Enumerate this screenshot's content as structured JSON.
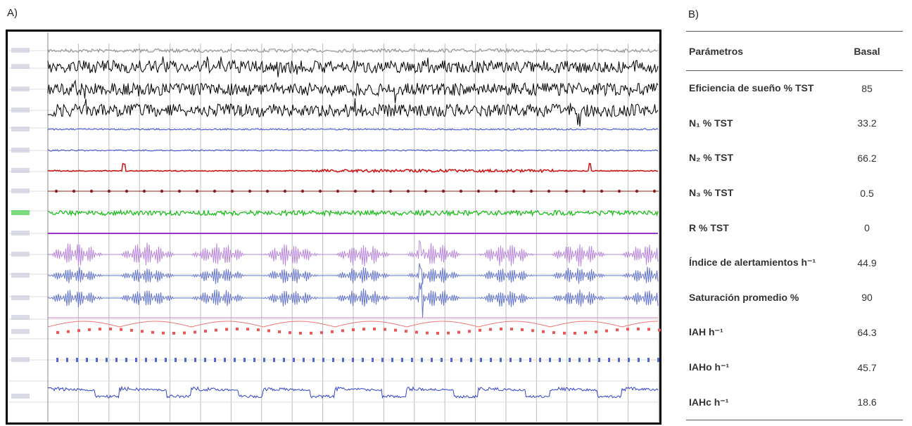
{
  "panel_a": {
    "label": "A)"
  },
  "panel_b": {
    "label": "B)",
    "table": {
      "header": [
        "Parámetros",
        "Basal"
      ],
      "rows": [
        [
          "Eficiencia de sueño % TST",
          85
        ],
        [
          "N₁ % TST",
          33.2
        ],
        [
          "N₂ % TST",
          66.2
        ],
        [
          "N₃ % TST",
          0.5
        ],
        [
          "R % TST",
          0
        ],
        [
          "Índice de alertamientos h⁻¹",
          44.9
        ],
        [
          "Saturación promedio %",
          90
        ],
        [
          "IAH h⁻¹",
          64.3
        ],
        [
          "IAHo h⁻¹",
          45.7
        ],
        [
          "IAHc h⁻¹",
          18.6
        ]
      ]
    }
  }
}
